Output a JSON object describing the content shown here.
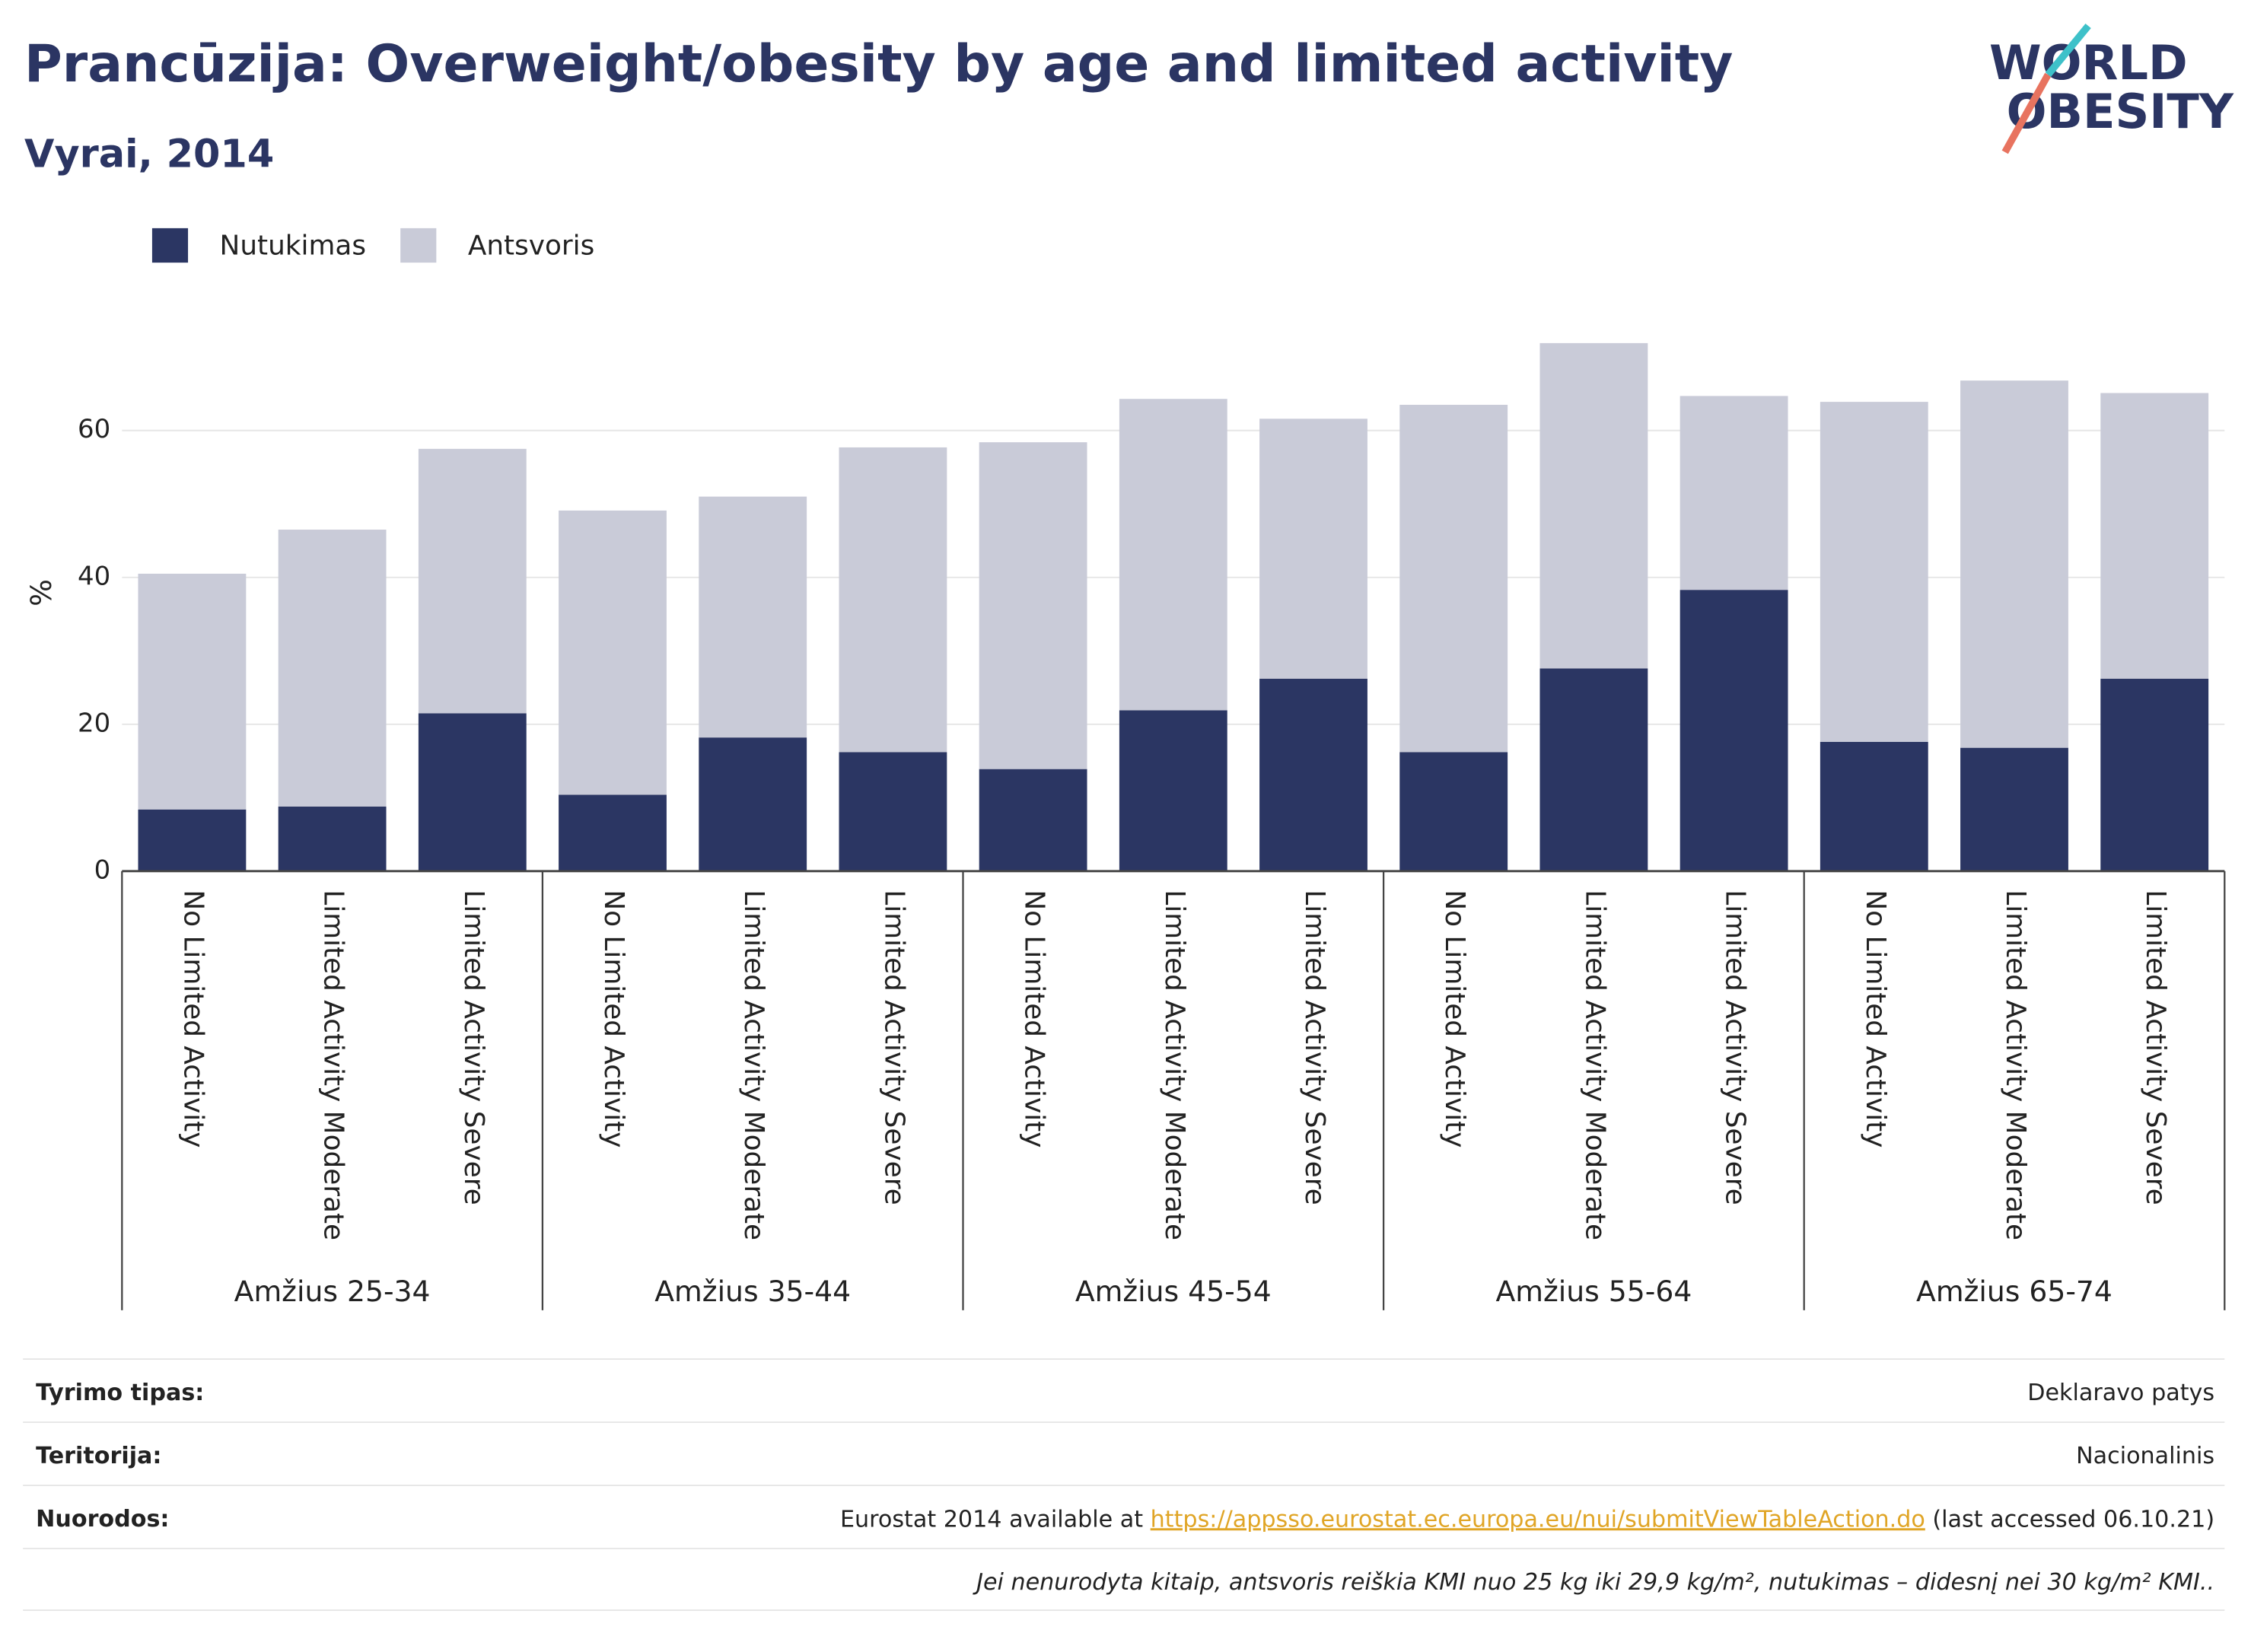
{
  "chart_data": {
    "type": "stacked_bar",
    "title": "Prancūzija: Overweight/obesity by age and limited activity",
    "subtitle": "Vyrai, 2014",
    "y_label": "%",
    "categories": [
      "No Limited Activity",
      "Limited Activity Moderate",
      "Limited Activity Severe",
      "No Limited Activity",
      "Limited Activity Moderate",
      "Limited Activity Severe",
      "No Limited Activity",
      "Limited Activity Moderate",
      "Limited Activity Severe",
      "No Limited Activity",
      "Limited Activity Moderate",
      "Limited Activity Severe",
      "No Limited Activity",
      "Limited Activity Moderate",
      "Limited Activity Severe"
    ],
    "groups": [
      "Amžius 25-34",
      "Amžius 35-44",
      "Amžius 45-54",
      "Amžius 55-64",
      "Amžius 65-74"
    ],
    "series": [
      {
        "name": "Nutukimas",
        "color": "#2b3663",
        "values": [
          8.4,
          8.8,
          21.5,
          10.4,
          18.2,
          16.2,
          13.9,
          21.9,
          26.2,
          16.2,
          27.6,
          38.3,
          17.6,
          16.8,
          26.2
        ]
      },
      {
        "name": "Antsvoris",
        "color": "#c9cbd8",
        "values": [
          32.1,
          37.7,
          36.0,
          38.7,
          32.8,
          41.5,
          44.5,
          42.4,
          35.4,
          47.3,
          44.3,
          26.4,
          46.3,
          50.0,
          38.9
        ]
      }
    ],
    "ylim": [
      0,
      72.5
    ],
    "yticks": [
      0,
      20,
      40,
      60
    ],
    "grid": true,
    "legend": "top-left"
  },
  "logo": {
    "line1": "WORLD",
    "line2": "OBESITY"
  },
  "footer": {
    "rows": [
      {
        "label": "Tyrimo tipas:",
        "value": "Deklaravo patys"
      },
      {
        "label": "Teritorija:",
        "value": "Nacionalinis"
      },
      {
        "label": "Nuorodos:",
        "value_before": "Eurostat 2014 available at ",
        "link": "https://appsso.eurostat.ec.europa.eu/nui/submitViewTableAction.do",
        "value_after": " (last accessed 06.10.21)"
      }
    ],
    "note": "Jei nenurodyta kitaip, antsvoris reiškia KMI nuo 25 kg iki 29,9 kg/m², nutukimas – didesnį nei 30 kg/m² KMI.."
  }
}
